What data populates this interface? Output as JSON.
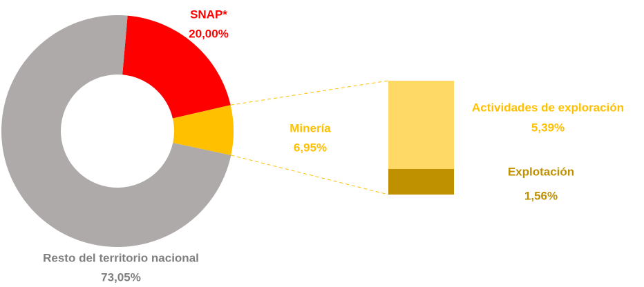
{
  "chart_data": [
    {
      "type": "pie",
      "categories": [
        "SNAP*",
        "Minería",
        "Resto del territorio nacional"
      ],
      "values": [
        20.0,
        6.95,
        73.05
      ],
      "value_labels": [
        "20,00%",
        "6,95%",
        "73,05%"
      ],
      "colors": [
        "#ff0000",
        "#ffc000",
        "#aeaaaa"
      ],
      "label_colors": [
        "#ff0000",
        "#ffc000",
        "#7f7f7f"
      ]
    },
    {
      "type": "bar",
      "categories": [
        "Actividades de exploración",
        "Explotación"
      ],
      "values": [
        5.39,
        1.56
      ],
      "value_labels": [
        "5,39%",
        "1,56%"
      ],
      "colors": [
        "#ffd966",
        "#bf9000"
      ],
      "label_colors": [
        "#ffc000",
        "#bf9000"
      ]
    }
  ]
}
